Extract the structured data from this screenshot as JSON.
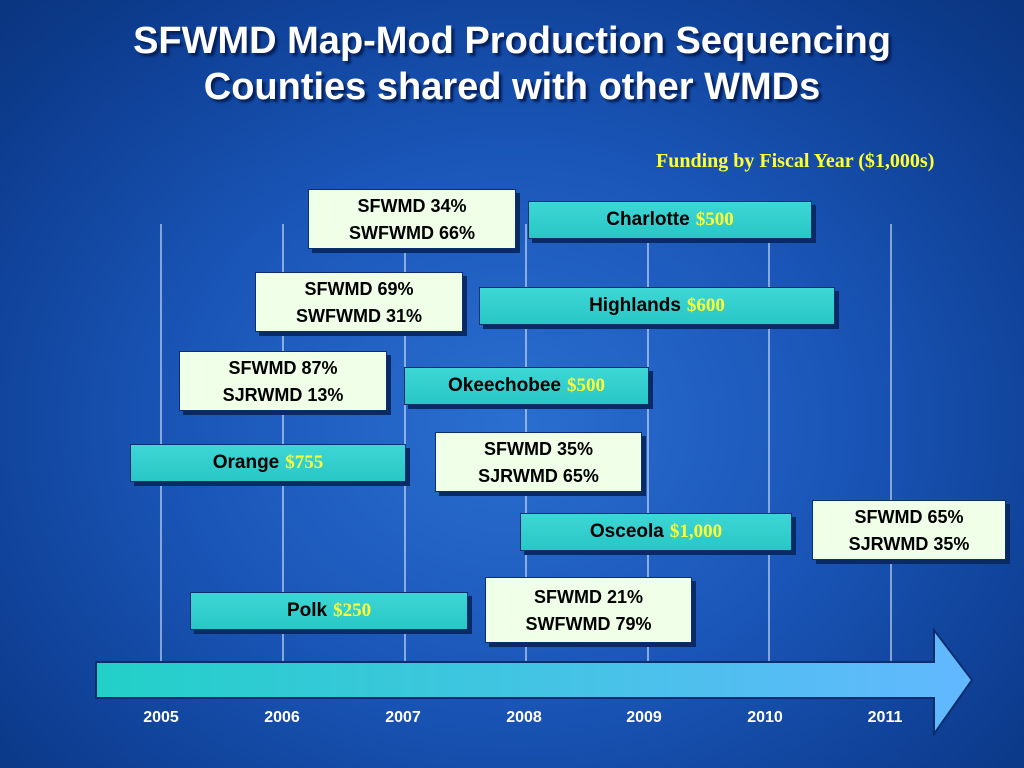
{
  "title": {
    "line1": "SFWMD Map-Mod Production Sequencing",
    "line2": "Counties shared with other WMDs"
  },
  "subtitle": "Funding by Fiscal Year ($1,000s)",
  "years": [
    "2005",
    "2006",
    "2007",
    "2008",
    "2009",
    "2010",
    "2011"
  ],
  "counties": {
    "charlotte": {
      "name": "Charlotte",
      "amount": "$500"
    },
    "highlands": {
      "name": "Highlands",
      "amount": "$600"
    },
    "okeechobee": {
      "name": "Okeechobee",
      "amount": "$500"
    },
    "orange": {
      "name": "Orange",
      "amount": "$755"
    },
    "osceola": {
      "name": "Osceola",
      "amount": "$1,000"
    },
    "polk": {
      "name": "Polk",
      "amount": "$250"
    }
  },
  "shares": {
    "charlotte": {
      "line1": "SFWMD 34%",
      "line2": "SWFWMD 66%"
    },
    "highlands": {
      "line1": "SFWMD 69%",
      "line2": "SWFWMD 31%"
    },
    "okeechobee": {
      "line1": "SFWMD 87%",
      "line2": "SJRWMD 13%"
    },
    "orange": {
      "line1": "SFWMD 35%",
      "line2": "SJRWMD 65%"
    },
    "osceola": {
      "line1": "SFWMD 65%",
      "line2": "SJRWMD 35%"
    },
    "polk": {
      "line1": "SFWMD 21%",
      "line2": "SWFWMD 79%"
    }
  },
  "colors": {
    "background": "#1a56b8",
    "county_bar": "#2fcfcf",
    "share_box": "#efffe8",
    "amount_text": "#ffff33",
    "subtitle_text": "#ffff33",
    "arrow_start": "#22d0c8",
    "arrow_end": "#63b8ff"
  }
}
